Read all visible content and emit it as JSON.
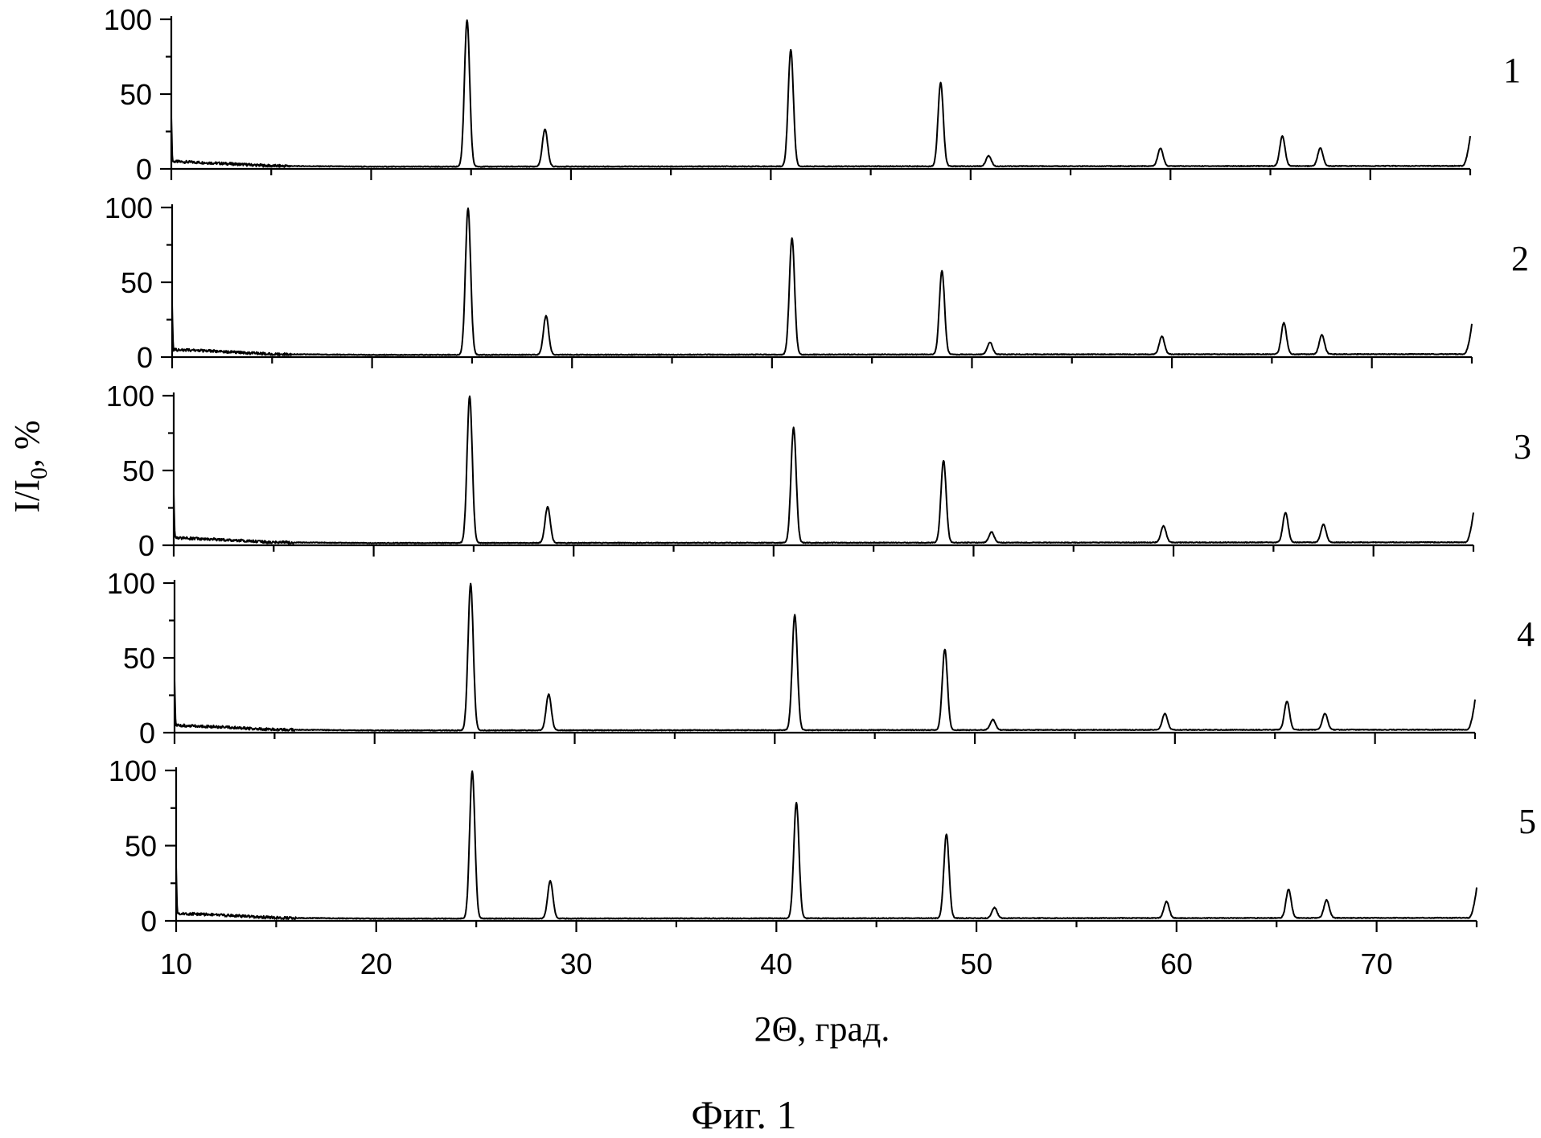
{
  "chart_data": {
    "type": "line",
    "caption": "Фиг. 1",
    "xlabel": "2Θ, град.",
    "ylabel": "I/I",
    "ylabel_subscript": "0",
    "ylabel_suffix": ", %",
    "xlim": [
      10,
      75
    ],
    "ylim": [
      0,
      100
    ],
    "x_ticks": [
      10,
      20,
      30,
      40,
      50,
      60,
      70
    ],
    "y_ticks": [
      0,
      50,
      100
    ],
    "grid": false,
    "stacked_panels": 5,
    "series": [
      {
        "name": "1",
        "baseline": [
          [
            10,
            5
          ],
          [
            12,
            4
          ],
          [
            15,
            2
          ],
          [
            20,
            1.5
          ],
          [
            75,
            2
          ]
        ],
        "peaks": [
          {
            "x": 24.8,
            "y": 100
          },
          {
            "x": 28.7,
            "y": 27
          },
          {
            "x": 41.0,
            "y": 80
          },
          {
            "x": 48.5,
            "y": 58
          },
          {
            "x": 50.9,
            "y": 9
          },
          {
            "x": 59.5,
            "y": 14
          },
          {
            "x": 65.6,
            "y": 22
          },
          {
            "x": 67.5,
            "y": 14
          }
        ],
        "end_rise": 20
      },
      {
        "name": "2",
        "baseline": [
          [
            10,
            5
          ],
          [
            12,
            4
          ],
          [
            15,
            2
          ],
          [
            20,
            1.5
          ],
          [
            75,
            2
          ]
        ],
        "peaks": [
          {
            "x": 24.8,
            "y": 100
          },
          {
            "x": 28.7,
            "y": 28
          },
          {
            "x": 41.0,
            "y": 80
          },
          {
            "x": 48.5,
            "y": 58
          },
          {
            "x": 50.9,
            "y": 10
          },
          {
            "x": 59.5,
            "y": 14
          },
          {
            "x": 65.6,
            "y": 23
          },
          {
            "x": 67.5,
            "y": 15
          }
        ],
        "end_rise": 20
      },
      {
        "name": "3",
        "baseline": [
          [
            10,
            5
          ],
          [
            12,
            4
          ],
          [
            15,
            2
          ],
          [
            20,
            1.5
          ],
          [
            75,
            2
          ]
        ],
        "peaks": [
          {
            "x": 24.8,
            "y": 100
          },
          {
            "x": 28.7,
            "y": 26
          },
          {
            "x": 41.0,
            "y": 79
          },
          {
            "x": 48.5,
            "y": 57
          },
          {
            "x": 50.9,
            "y": 9
          },
          {
            "x": 59.5,
            "y": 13
          },
          {
            "x": 65.6,
            "y": 22
          },
          {
            "x": 67.5,
            "y": 14
          }
        ],
        "end_rise": 20
      },
      {
        "name": "4",
        "baseline": [
          [
            10,
            5
          ],
          [
            12,
            4
          ],
          [
            15,
            2
          ],
          [
            20,
            1.5
          ],
          [
            75,
            2
          ]
        ],
        "peaks": [
          {
            "x": 24.8,
            "y": 100
          },
          {
            "x": 28.7,
            "y": 26
          },
          {
            "x": 41.0,
            "y": 79
          },
          {
            "x": 48.5,
            "y": 56
          },
          {
            "x": 50.9,
            "y": 9
          },
          {
            "x": 59.5,
            "y": 13
          },
          {
            "x": 65.6,
            "y": 21
          },
          {
            "x": 67.5,
            "y": 13
          }
        ],
        "end_rise": 20
      },
      {
        "name": "5",
        "baseline": [
          [
            10,
            5
          ],
          [
            12,
            4
          ],
          [
            15,
            2
          ],
          [
            20,
            1.5
          ],
          [
            75,
            2
          ]
        ],
        "peaks": [
          {
            "x": 24.8,
            "y": 100
          },
          {
            "x": 28.7,
            "y": 27
          },
          {
            "x": 41.0,
            "y": 79
          },
          {
            "x": 48.5,
            "y": 58
          },
          {
            "x": 50.9,
            "y": 9
          },
          {
            "x": 59.5,
            "y": 13
          },
          {
            "x": 65.6,
            "y": 21
          },
          {
            "x": 67.5,
            "y": 14
          }
        ],
        "end_rise": 20
      }
    ]
  }
}
